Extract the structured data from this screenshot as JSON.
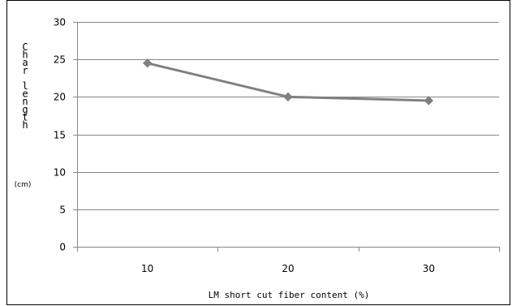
{
  "chart_data": {
    "type": "line",
    "x": [
      10,
      20,
      30
    ],
    "series": [
      {
        "values": [
          24.5,
          20.0,
          19.5
        ],
        "color": "#808080",
        "marker": "diamond"
      }
    ],
    "xlabel": "LM short cut fiber content (%)",
    "ylabel": "Char length",
    "ylabel_unit": "(cm)",
    "ylim": [
      0,
      30
    ],
    "yticks": [
      0,
      5,
      10,
      15,
      20,
      25,
      30
    ],
    "xtick_labels": [
      "10",
      "20",
      "30"
    ],
    "grid": true,
    "grid_color": "#868686",
    "legend": false
  }
}
